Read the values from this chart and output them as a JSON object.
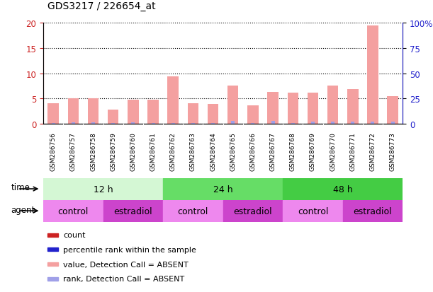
{
  "title": "GDS3217 / 226654_at",
  "samples": [
    "GSM286756",
    "GSM286757",
    "GSM286758",
    "GSM286759",
    "GSM286760",
    "GSM286761",
    "GSM286762",
    "GSM286763",
    "GSM286764",
    "GSM286765",
    "GSM286766",
    "GSM286767",
    "GSM286768",
    "GSM286769",
    "GSM286770",
    "GSM286771",
    "GSM286772",
    "GSM286773"
  ],
  "count_values": [
    4.0,
    5.1,
    5.1,
    2.8,
    4.7,
    4.7,
    9.4,
    4.1,
    3.9,
    7.6,
    3.7,
    6.3,
    6.1,
    6.2,
    7.6,
    6.8,
    19.4,
    5.5
  ],
  "rank_values": [
    0.5,
    1.5,
    1.4,
    0.6,
    1.5,
    1.0,
    0.6,
    0.8,
    0.5,
    2.5,
    0.5,
    2.5,
    1.0,
    2.0,
    2.4,
    2.0,
    2.0,
    2.0
  ],
  "count_color": "#f4a0a0",
  "rank_color": "#a0a0e8",
  "ylim_left": [
    0,
    20
  ],
  "ylim_right": [
    0,
    100
  ],
  "yticks_left": [
    0,
    5,
    10,
    15,
    20
  ],
  "yticks_right": [
    0,
    25,
    50,
    75,
    100
  ],
  "ytick_labels_right": [
    "0",
    "25",
    "50",
    "75",
    "100%"
  ],
  "grid_color": "black",
  "bg_color": "#ffffff",
  "plot_area_bg": "#ffffff",
  "time_groups": [
    {
      "label": "12 h",
      "start": 0,
      "end": 6,
      "color": "#d4f7d4"
    },
    {
      "label": "24 h",
      "start": 6,
      "end": 12,
      "color": "#66dd66"
    },
    {
      "label": "48 h",
      "start": 12,
      "end": 18,
      "color": "#44cc44"
    }
  ],
  "agent_groups": [
    {
      "label": "control",
      "start": 0,
      "end": 3,
      "color": "#ee88ee"
    },
    {
      "label": "estradiol",
      "start": 3,
      "end": 6,
      "color": "#cc44cc"
    },
    {
      "label": "control",
      "start": 6,
      "end": 9,
      "color": "#ee88ee"
    },
    {
      "label": "estradiol",
      "start": 9,
      "end": 12,
      "color": "#cc44cc"
    },
    {
      "label": "control",
      "start": 12,
      "end": 15,
      "color": "#ee88ee"
    },
    {
      "label": "estradiol",
      "start": 15,
      "end": 18,
      "color": "#cc44cc"
    }
  ],
  "sample_bg_color": "#cccccc",
  "left_axis_color": "#cc2222",
  "right_axis_color": "#2222cc",
  "bar_width": 0.55,
  "legend_items": [
    {
      "label": "count",
      "color": "#cc2222"
    },
    {
      "label": "percentile rank within the sample",
      "color": "#2222cc"
    },
    {
      "label": "value, Detection Call = ABSENT",
      "color": "#f4a0a0"
    },
    {
      "label": "rank, Detection Call = ABSENT",
      "color": "#a0a0e8"
    }
  ],
  "time_label": "time",
  "agent_label": "agent"
}
